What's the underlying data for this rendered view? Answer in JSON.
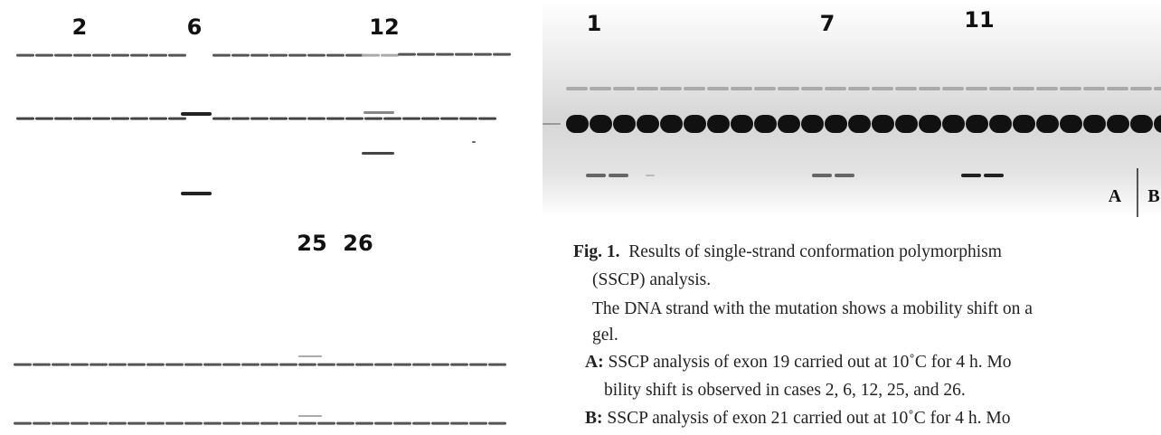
{
  "panel_a": {
    "lane_labels": [
      "2",
      "6",
      "12",
      "25",
      "26"
    ]
  },
  "panel_b": {
    "lane_labels": [
      "1",
      "7",
      "11"
    ]
  },
  "panel_labels": [
    "A",
    "B"
  ],
  "caption": {
    "label": "Fig. 1.",
    "title": "Results of single-strand conformation polymorphism",
    "title_cont": "(SSCP) analysis.",
    "body": "The DNA strand with the mutation shows a mobility shift on a",
    "body_cont": "gel.",
    "items": [
      {
        "label": "A:",
        "text": "SSCP analysis of exon 19 carried out at 10˚C for 4 h. Mo",
        "cont": "bility shift is observed in cases 2, 6, 12, 25, and 26."
      },
      {
        "label": "B:",
        "text": "SSCP analysis of exon 21 carried out at 10˚C for 4 h. Mo"
      }
    ]
  }
}
